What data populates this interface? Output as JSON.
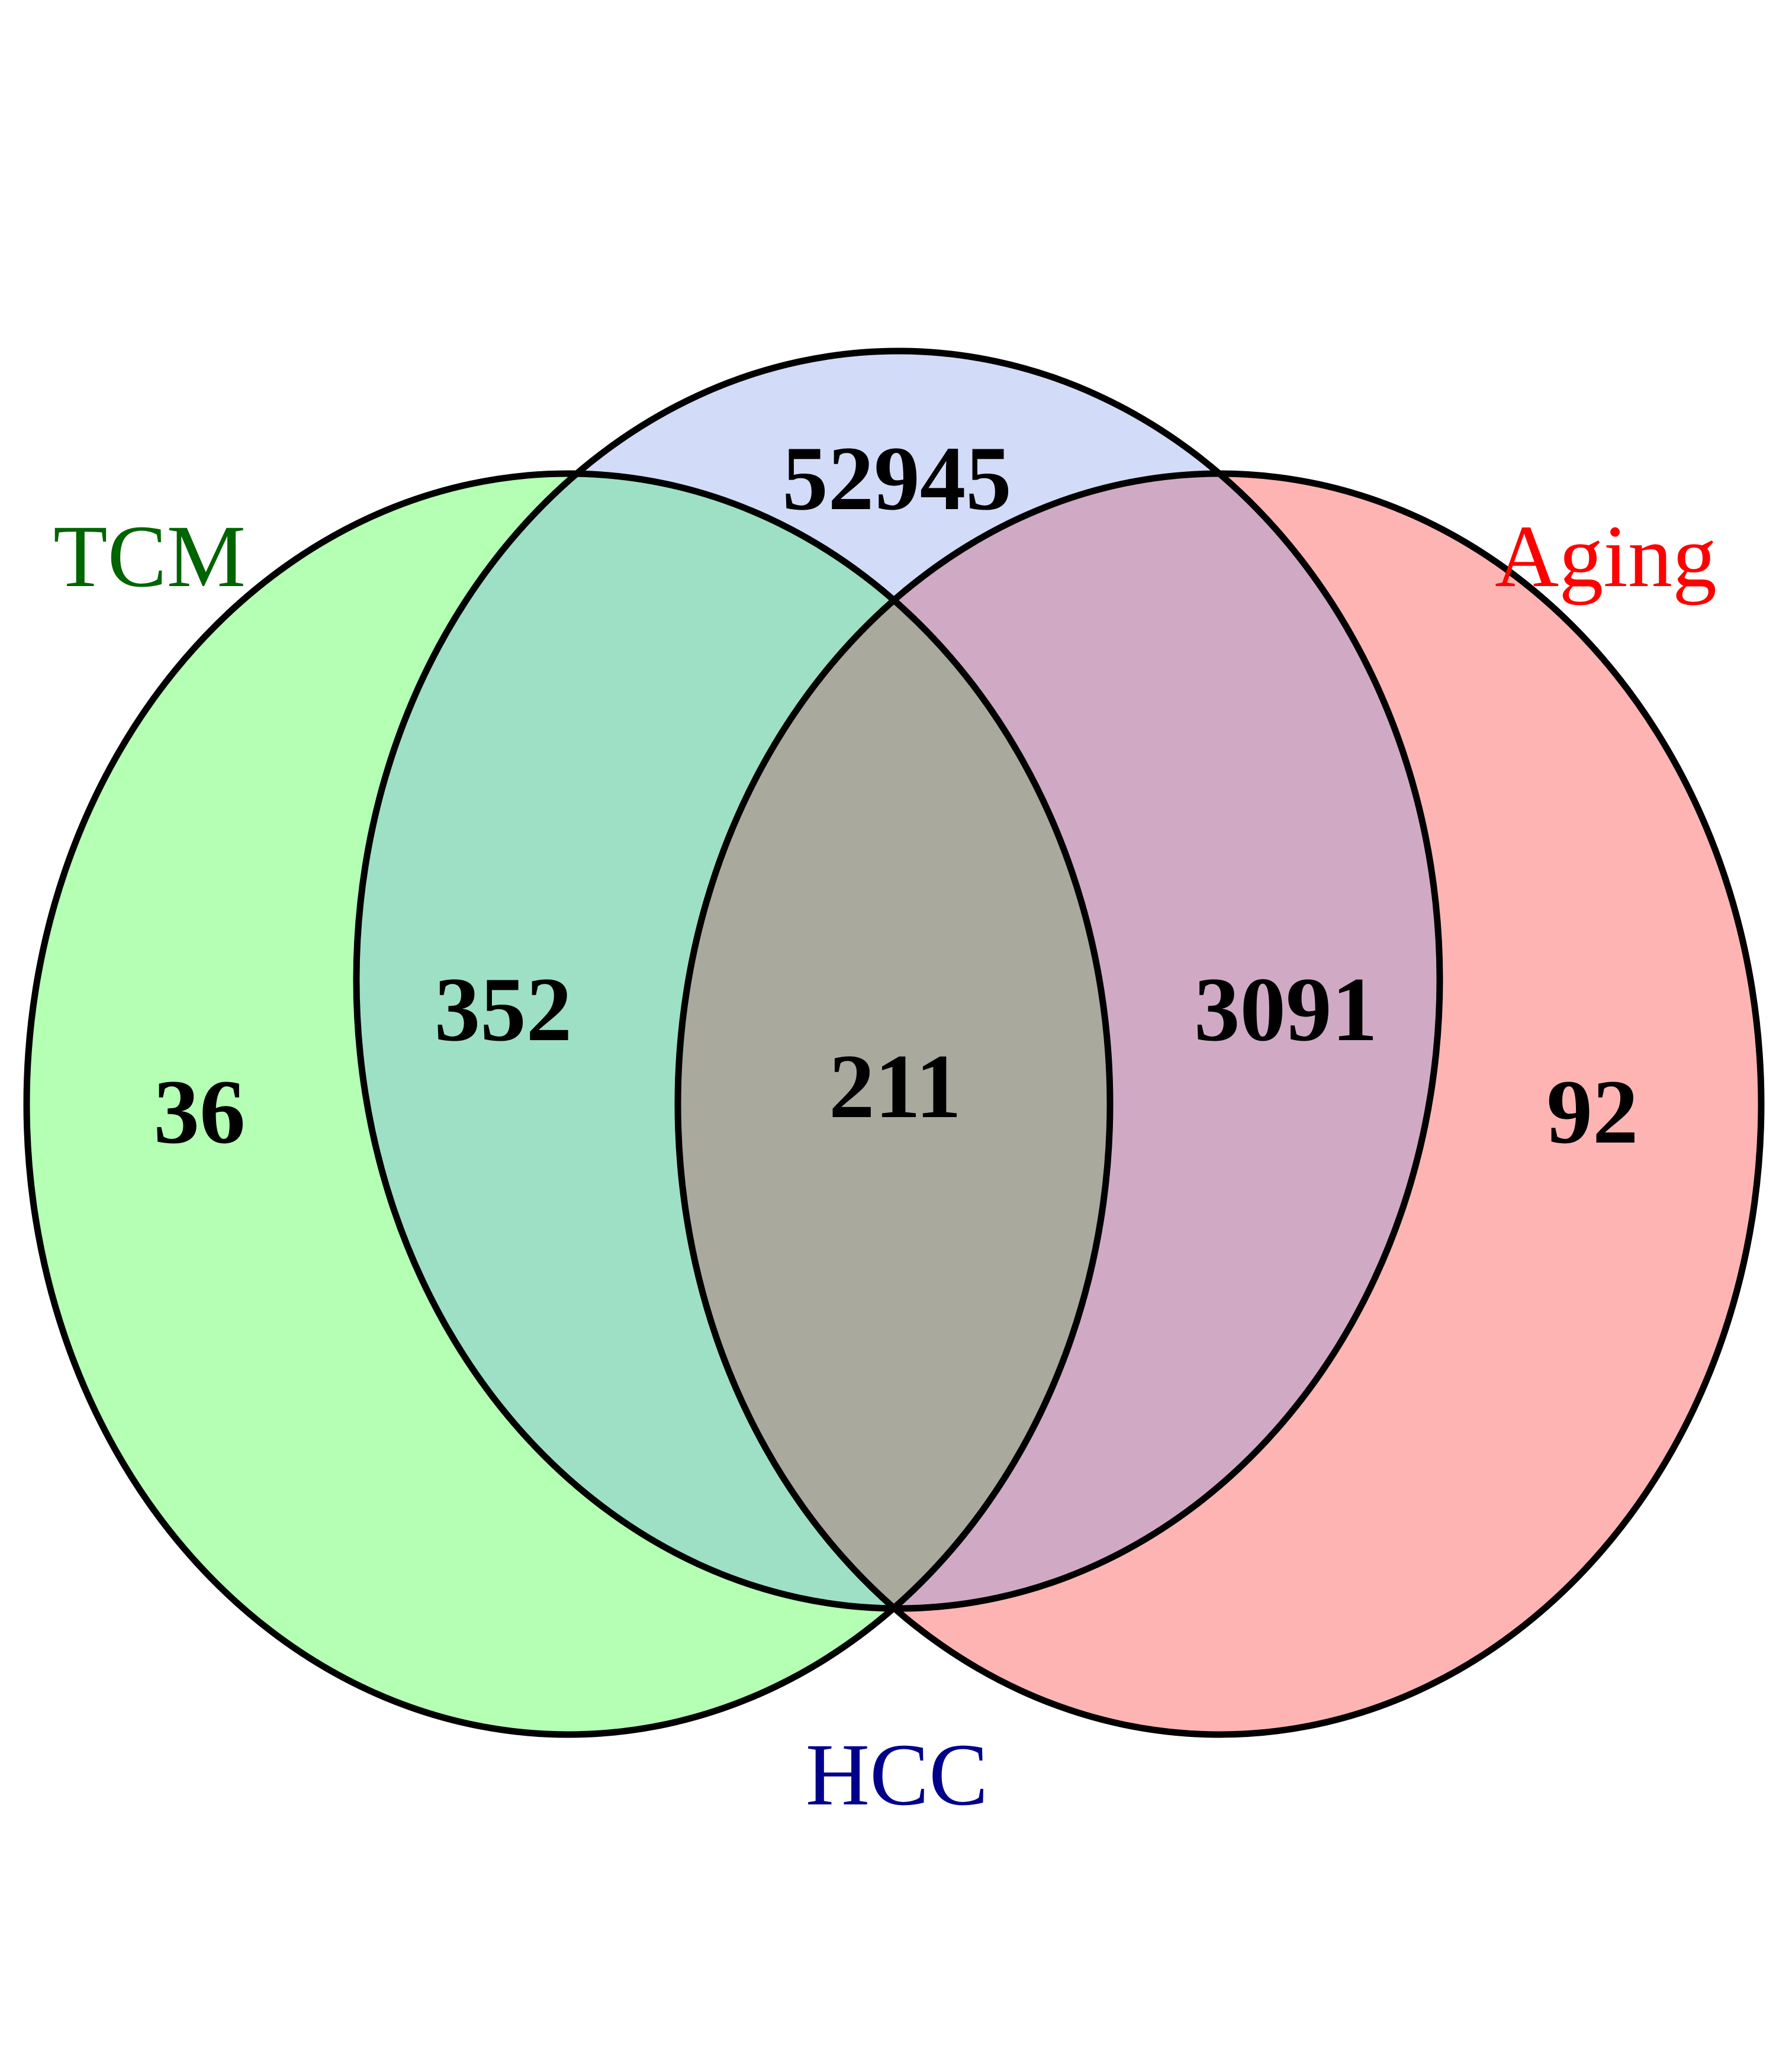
{
  "sets": {
    "tcm": {
      "label": "TCM",
      "color": "#b4ffb4",
      "label_color": "#006400"
    },
    "hcc": {
      "label": "HCC",
      "color": "#d2dcf8",
      "label_color": "#00008b"
    },
    "aging": {
      "label": "Aging",
      "color": "#ffb4b4",
      "label_color": "#ff0000"
    }
  },
  "regions": {
    "tcm_only": "36",
    "hcc_only": "52945",
    "aging_only": "92",
    "tcm_hcc": "352",
    "hcc_aging": "3091",
    "tcm_hcc_aging": "211"
  },
  "region_colors": {
    "tcm_hcc": "#9ee0c6",
    "hcc_aging": "#d0aac4",
    "tcm_hcc_aging": "#aaa99d"
  }
}
